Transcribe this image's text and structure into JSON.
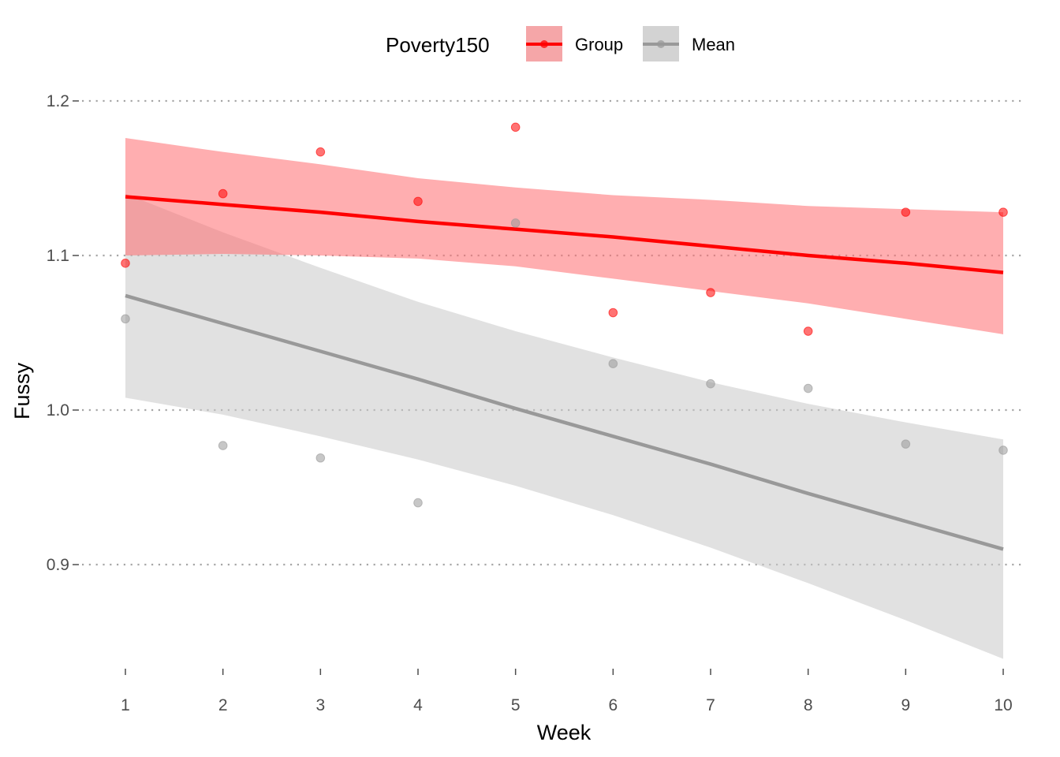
{
  "chart_data": {
    "type": "line",
    "xlabel": "Week",
    "ylabel": "Fussy",
    "x": [
      1,
      2,
      3,
      4,
      5,
      6,
      7,
      8,
      9,
      10
    ],
    "xlim": [
      1,
      10
    ],
    "ylim": [
      0.83,
      1.22
    ],
    "yticks": [
      0.9,
      1.0,
      1.1,
      1.2
    ],
    "ytick_labels": [
      "0.9",
      "1.0",
      "1.1",
      "1.2"
    ],
    "xtick_labels": [
      "1",
      "2",
      "3",
      "4",
      "5",
      "6",
      "7",
      "8",
      "9",
      "10"
    ],
    "grid": "horizontal dotted",
    "legend": {
      "title": "Poverty150",
      "placement": "top",
      "entries": [
        "Group",
        "Mean"
      ]
    },
    "series": [
      {
        "name": "Group",
        "color": "#ff0000",
        "band_color": "#ff6b6f",
        "points": [
          1.095,
          1.14,
          1.167,
          1.135,
          1.183,
          1.063,
          1.076,
          1.051,
          1.128,
          1.128
        ],
        "fit": [
          1.138,
          1.133,
          1.128,
          1.122,
          1.117,
          1.112,
          1.106,
          1.1,
          1.095,
          1.089
        ],
        "ci_lower": [
          1.1,
          1.101,
          1.1,
          1.098,
          1.093,
          1.085,
          1.077,
          1.069,
          1.059,
          1.049
        ],
        "ci_upper": [
          1.176,
          1.167,
          1.159,
          1.15,
          1.144,
          1.139,
          1.136,
          1.132,
          1.13,
          1.128
        ]
      },
      {
        "name": "Mean",
        "color": "#999999",
        "band_color": "#c8c8c8",
        "points": [
          1.059,
          0.977,
          0.969,
          0.94,
          1.121,
          1.03,
          1.017,
          1.014,
          0.978,
          0.974
        ],
        "fit": [
          1.074,
          1.056,
          1.038,
          1.02,
          1.001,
          0.983,
          0.965,
          0.946,
          0.928,
          0.91
        ],
        "ci_lower": [
          1.008,
          0.997,
          0.983,
          0.968,
          0.951,
          0.932,
          0.911,
          0.888,
          0.864,
          0.839
        ],
        "ci_upper": [
          1.14,
          1.115,
          1.092,
          1.07,
          1.051,
          1.034,
          1.018,
          1.004,
          0.992,
          0.981
        ]
      }
    ]
  }
}
